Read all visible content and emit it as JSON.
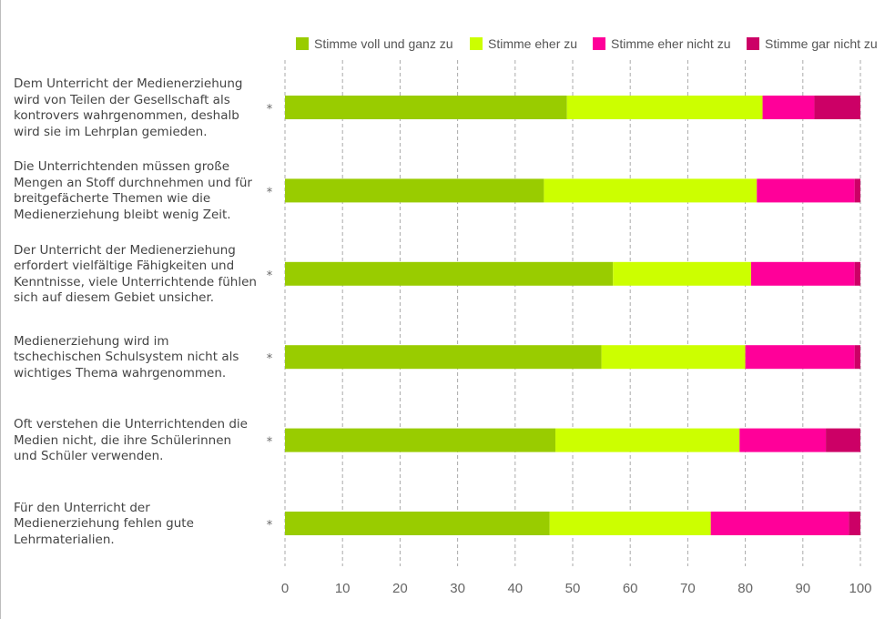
{
  "chart_data": {
    "type": "bar",
    "orientation": "horizontal",
    "stacked": true,
    "categories": [
      "Dem Unterricht der Medienerziehung wird von Teilen der Gesellschaft als kontrovers wahrgenommen, deshalb wird sie im Lehrplan gemieden.",
      "Die Unterrichtenden müssen große Mengen an Stoff durchnehmen und für breitgefächerte Themen wie die Medienerziehung bleibt wenig Zeit.",
      "Der Unterricht der Medienerziehung erfordert vielfältige Fähigkeiten und Kenntnisse, viele Unterrichtende fühlen sich auf diesem Gebiet unsicher.",
      "Medienerziehung wird im tschechischen Schulsystem nicht als wichtiges Thema wahrgenommen.",
      "Oft verstehen die Unterrichtenden die Medien nicht, die ihre Schülerinnen und Schüler verwenden.",
      "Für den Unterricht der Medienerziehung fehlen gute Lehrmaterialien."
    ],
    "category_lines": [
      [
        "Dem Unterricht der Medienerziehung",
        "wird von Teilen der Gesellschaft als",
        "kontrovers wahrgenommen, deshalb",
        "wird sie im Lehrplan gemieden."
      ],
      [
        "Die Unterrichtenden müssen große",
        "Mengen an Stoff durchnehmen und für",
        "breitgefächerte Themen wie die",
        "Medienerziehung bleibt wenig Zeit."
      ],
      [
        "Der Unterricht der Medienerziehung",
        "erfordert vielfältige Fähigkeiten und",
        "Kenntnisse, viele Unterrichtende fühlen",
        "sich auf diesem Gebiet unsicher."
      ],
      [
        "Medienerziehung wird im",
        "tschechischen Schulsystem nicht als",
        "wichtiges Thema wahrgenommen."
      ],
      [
        "Oft verstehen die Unterrichtenden die",
        "Medien nicht, die ihre Schülerinnen",
        "und Schüler verwenden."
      ],
      [
        "Für den Unterricht der",
        "Medienerziehung fehlen gute",
        "Lehrmaterialien."
      ]
    ],
    "series": [
      {
        "name": "Stimme voll und ganz zu",
        "color": "#99cc00",
        "values": [
          49,
          45,
          57,
          55,
          47,
          46
        ]
      },
      {
        "name": "Stimme eher zu",
        "color": "#ccff00",
        "values": [
          34,
          37,
          24,
          25,
          32,
          28
        ]
      },
      {
        "name": "Stimme eher nicht zu",
        "color": "#ff0099",
        "values": [
          9,
          17,
          18,
          19,
          15,
          24
        ]
      },
      {
        "name": "Stimme gar nicht zu",
        "color": "#cc0066",
        "values": [
          8,
          1,
          1,
          1,
          6,
          2
        ]
      }
    ],
    "marker": "*",
    "xlim": [
      0,
      100
    ],
    "xticks": [
      0,
      10,
      20,
      30,
      40,
      50,
      60,
      70,
      80,
      90,
      100
    ],
    "grid": "vertical-dashed",
    "legend": "top"
  }
}
